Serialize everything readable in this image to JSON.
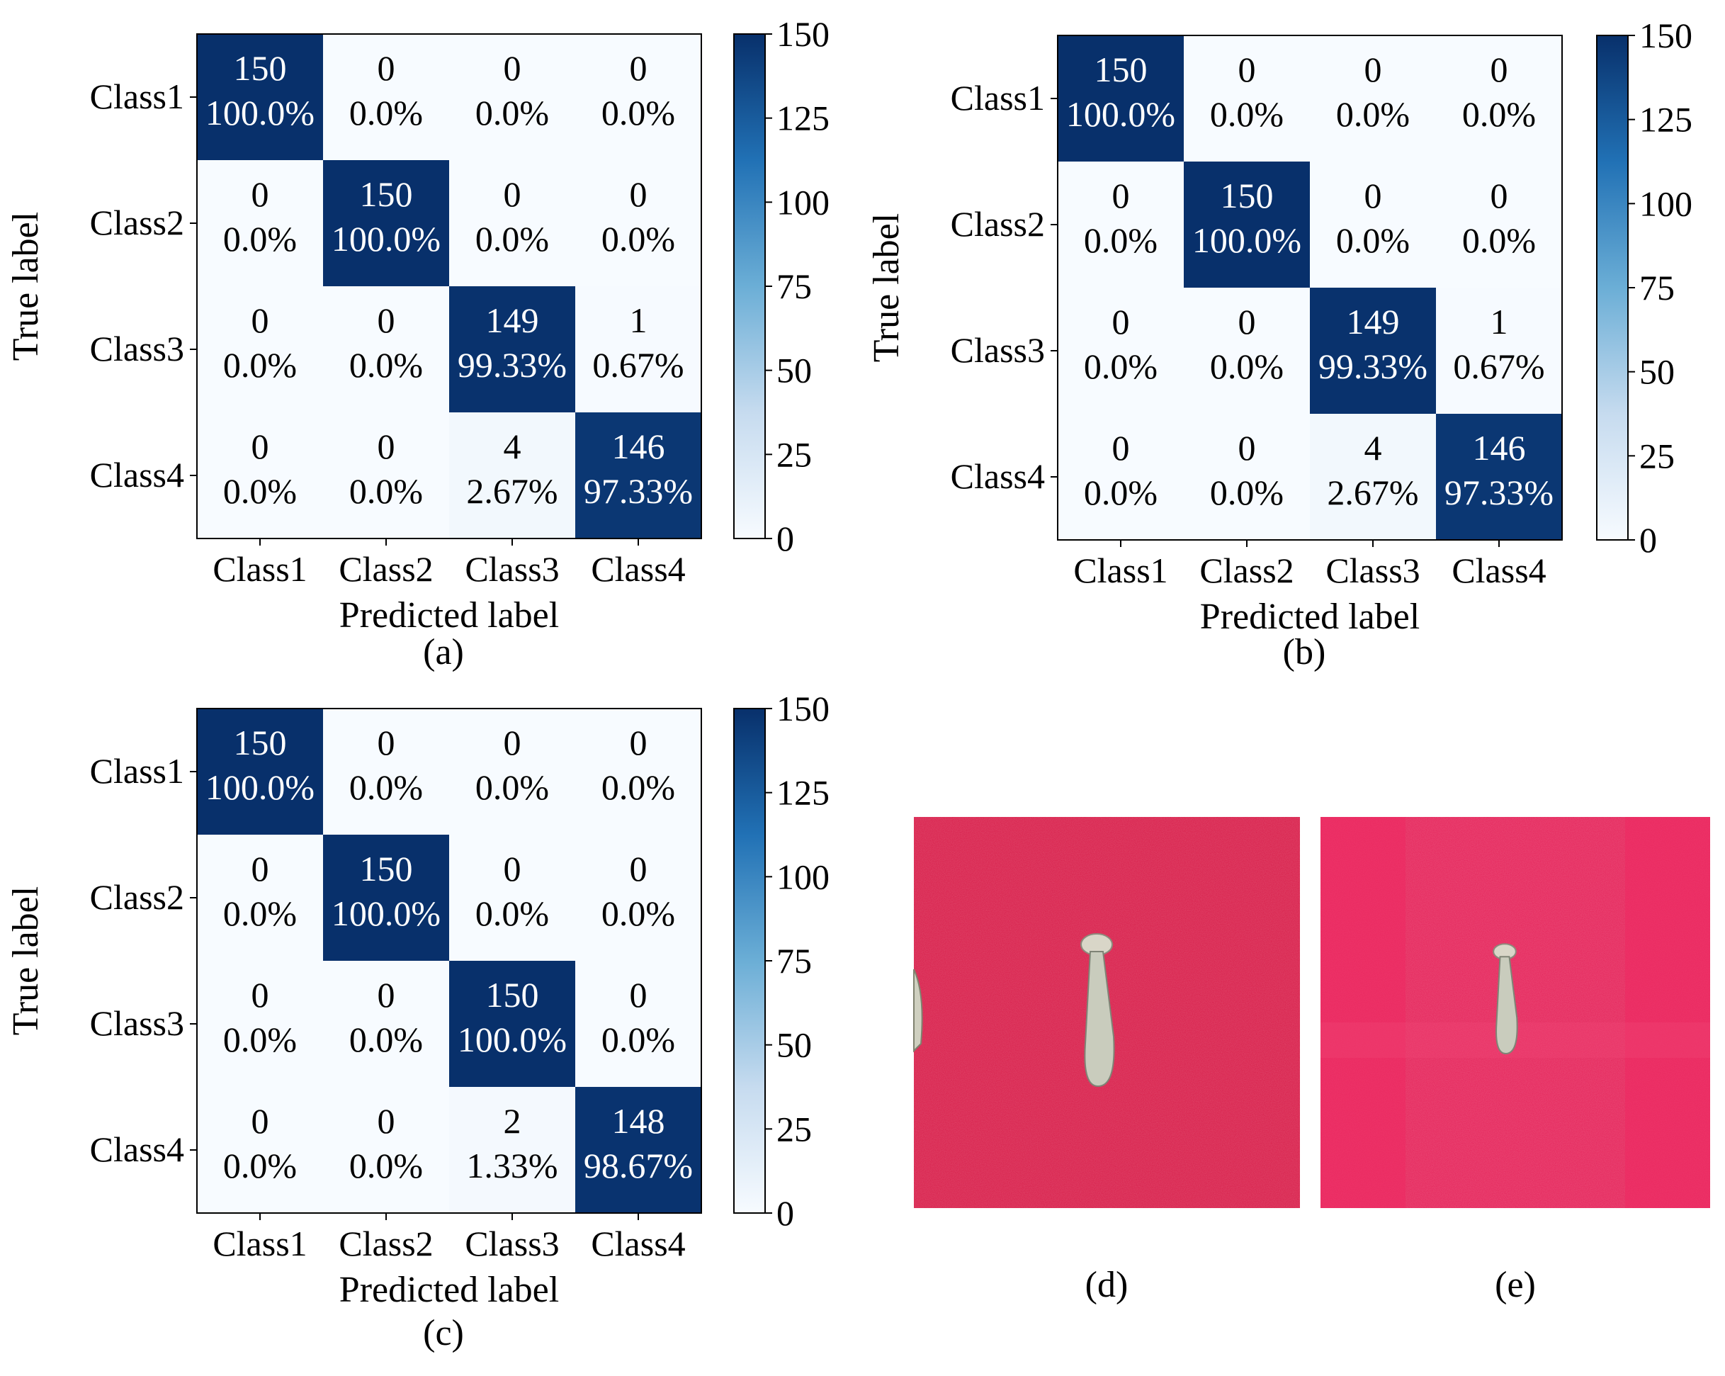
{
  "chart_data": [
    {
      "type": "heatmap",
      "panel_label": "(a)",
      "xlabel": "Predicted label",
      "ylabel": "True label",
      "categories": [
        "Class1",
        "Class2",
        "Class3",
        "Class4"
      ],
      "matrix": [
        [
          150,
          0,
          0,
          0
        ],
        [
          0,
          150,
          0,
          0
        ],
        [
          0,
          0,
          149,
          1
        ],
        [
          0,
          0,
          4,
          146
        ]
      ],
      "percent": [
        [
          "100.0%",
          "0.0%",
          "0.0%",
          "0.0%"
        ],
        [
          "0.0%",
          "100.0%",
          "0.0%",
          "0.0%"
        ],
        [
          "0.0%",
          "0.0%",
          "99.33%",
          "0.67%"
        ],
        [
          "0.0%",
          "0.0%",
          "2.67%",
          "97.33%"
        ]
      ],
      "colorbar": {
        "range": [
          0,
          150
        ],
        "ticks": [
          "0",
          "25",
          "50",
          "75",
          "100",
          "125",
          "150"
        ]
      },
      "colormap": {
        "low": "#f7fbff",
        "mid": "#6baed6",
        "high": "#08306b"
      }
    },
    {
      "type": "heatmap",
      "panel_label": "(b)",
      "xlabel": "Predicted label",
      "ylabel": "True label",
      "categories": [
        "Class1",
        "Class2",
        "Class3",
        "Class4"
      ],
      "matrix": [
        [
          150,
          0,
          0,
          0
        ],
        [
          0,
          150,
          0,
          0
        ],
        [
          0,
          0,
          149,
          1
        ],
        [
          0,
          0,
          4,
          146
        ]
      ],
      "percent": [
        [
          "100.0%",
          "0.0%",
          "0.0%",
          "0.0%"
        ],
        [
          "0.0%",
          "100.0%",
          "0.0%",
          "0.0%"
        ],
        [
          "0.0%",
          "0.0%",
          "99.33%",
          "0.67%"
        ],
        [
          "0.0%",
          "0.0%",
          "2.67%",
          "97.33%"
        ]
      ],
      "colorbar": {
        "range": [
          0,
          150
        ],
        "ticks": [
          "0",
          "25",
          "50",
          "75",
          "100",
          "125",
          "150"
        ]
      },
      "colormap": {
        "low": "#f7fbff",
        "mid": "#6baed6",
        "high": "#08306b"
      }
    },
    {
      "type": "heatmap",
      "panel_label": "(c)",
      "xlabel": "Predicted label",
      "ylabel": "True label",
      "categories": [
        "Class1",
        "Class2",
        "Class3",
        "Class4"
      ],
      "matrix": [
        [
          150,
          0,
          0,
          0
        ],
        [
          0,
          150,
          0,
          0
        ],
        [
          0,
          0,
          150,
          0
        ],
        [
          0,
          0,
          2,
          148
        ]
      ],
      "percent": [
        [
          "100.0%",
          "0.0%",
          "0.0%",
          "0.0%"
        ],
        [
          "0.0%",
          "100.0%",
          "0.0%",
          "0.0%"
        ],
        [
          "0.0%",
          "0.0%",
          "100.0%",
          "0.0%"
        ],
        [
          "0.0%",
          "0.0%",
          "1.33%",
          "98.67%"
        ]
      ],
      "colorbar": {
        "range": [
          0,
          150
        ],
        "ticks": [
          "0",
          "25",
          "50",
          "75",
          "100",
          "125",
          "150"
        ]
      },
      "colormap": {
        "low": "#f7fbff",
        "mid": "#6baed6",
        "high": "#08306b"
      }
    }
  ],
  "photos": [
    {
      "panel_label": "(d)",
      "background": "#d81e4a",
      "object": "mushroom-photo"
    },
    {
      "panel_label": "(e)",
      "background": "#e5245a",
      "object": "mushroom-photo"
    }
  ]
}
